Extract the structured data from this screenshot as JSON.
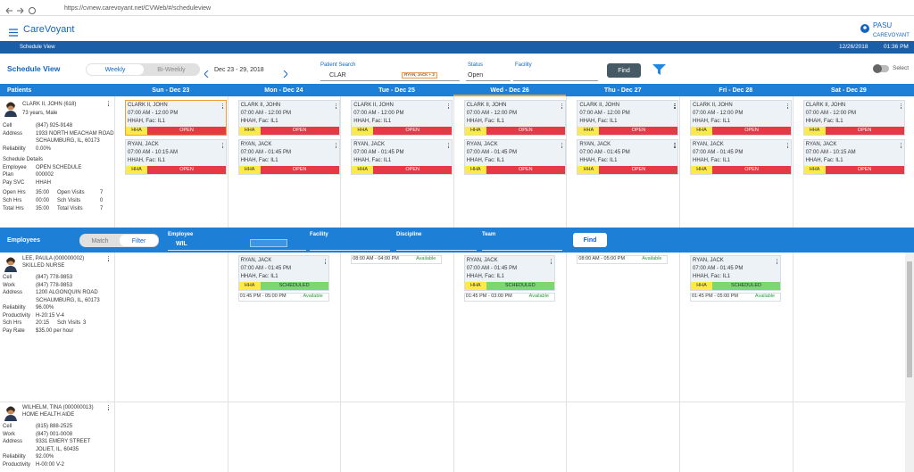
{
  "browser": {
    "url": "https://cvnew.carevoyant.net/CVWeb/#/scheduleview"
  },
  "header": {
    "app_name": "CareVoyant",
    "user": "PASU",
    "org": "CAREVOYANT"
  },
  "nav": {
    "title": "Schedule View",
    "date": "12/26/2018",
    "time": "01:36 PM"
  },
  "toolbar": {
    "title": "Schedule View",
    "views": [
      "Weekly",
      "Bi-Weekly"
    ],
    "range": "Dec 23 - 29, 2018",
    "patient_search": {
      "label": "Patient Search",
      "value": "CLAR",
      "tag": "RYAN, JACK + 2"
    },
    "status": {
      "label": "Status",
      "value": "Open"
    },
    "facility": {
      "label": "Facility"
    },
    "find": "Find",
    "select": "Select"
  },
  "patients": {
    "heading": "Patients",
    "days": [
      "Sun - Dec 23",
      "Mon - Dec 24",
      "Tue - Dec 25",
      "Wed - Dec 26",
      "Thu - Dec 27",
      "Fri - Dec 28",
      "Sat - Dec 29"
    ],
    "patient": {
      "name": "CLARK II, JOHN (618)",
      "info": "73 years, Male",
      "fields": [
        {
          "label": "Cell",
          "value": [
            "(847) 925-9148"
          ]
        },
        {
          "label": "Address",
          "value": [
            "1933 NORTH MEACHAM ROAD",
            "SCHAUMBURG, IL, 60173"
          ]
        },
        {
          "label": "Reliability",
          "value": [
            "0.00%"
          ]
        }
      ],
      "section": "Schedule Details",
      "details": [
        {
          "label": "Employee",
          "value": [
            "OPEN SCHEDULE"
          ]
        },
        {
          "label": "Plan",
          "value": [
            "000002"
          ]
        },
        {
          "label": "Pay SVC",
          "value": [
            "HHAH"
          ]
        }
      ],
      "stats": [
        [
          {
            "label": "Open Hrs",
            "value": "35:00"
          },
          {
            "label": "Open Visits",
            "value": "7"
          }
        ],
        [
          {
            "label": "Sch Hrs",
            "value": "00:00"
          },
          {
            "label": "Sch Visits",
            "value": "0"
          }
        ],
        [
          {
            "label": "Total Hrs",
            "value": "35:00"
          },
          {
            "label": "Total Visits",
            "value": "7"
          }
        ]
      ]
    },
    "schedule": [
      [
        {
          "name": "CLARK II, JOHN",
          "time": "07:00 AM - 12:00 PM",
          "note": "HHAH, Fac: IL1",
          "service": "HHA",
          "status": "OPEN"
        },
        {
          "name": "RYAN, JACK",
          "time": "07:00 AM - 10:15 AM",
          "note": "HHAH, Fac: IL1",
          "service": "HHA",
          "status": "OPEN"
        }
      ],
      [
        {
          "name": "CLARK II, JOHN",
          "time": "07:00 AM - 12:00 PM",
          "note": "HHAH, Fac: IL1",
          "service": "HHA",
          "status": "OPEN"
        },
        {
          "name": "RYAN, JACK",
          "time": "07:00 AM - 01:45 PM",
          "note": "HHAH, Fac: IL1",
          "service": "HHA",
          "status": "OPEN"
        }
      ],
      [
        {
          "name": "CLARK II, JOHN",
          "time": "07:00 AM - 12:00 PM",
          "note": "HHAH, Fac: IL1",
          "service": "HHA",
          "status": "OPEN"
        },
        {
          "name": "RYAN, JACK",
          "time": "07:00 AM - 01:45 PM",
          "note": "HHAH, Fac: IL1",
          "service": "HHA",
          "status": "OPEN"
        }
      ],
      [
        {
          "name": "CLARK II, JOHN",
          "time": "07:00 AM - 12:00 PM",
          "note": "HHAH, Fac: IL1",
          "service": "HHA",
          "status": "OPEN"
        },
        {
          "name": "RYAN, JACK",
          "time": "07:00 AM - 01:45 PM",
          "note": "HHAH, Fac: IL1",
          "service": "HHA",
          "status": "OPEN"
        }
      ],
      [
        {
          "name": "CLARK II, JOHN",
          "time": "07:00 AM - 12:00 PM",
          "note": "HHAH, Fac: IL1",
          "service": "HHA",
          "status": "OPEN"
        },
        {
          "name": "RYAN, JACK",
          "time": "07:00 AM - 01:45 PM",
          "note": "HHAH, Fac: IL1",
          "service": "HHA",
          "status": "OPEN"
        }
      ],
      [
        {
          "name": "CLARK II, JOHN",
          "time": "07:00 AM - 12:00 PM",
          "note": "HHAH, Fac: IL1",
          "service": "HHA",
          "status": "OPEN"
        },
        {
          "name": "RYAN, JACK",
          "time": "07:00 AM - 01:45 PM",
          "note": "HHAH, Fac: IL1",
          "service": "HHA",
          "status": "OPEN"
        }
      ],
      [
        {
          "name": "CLARK II, JOHN",
          "time": "07:00 AM - 12:00 PM",
          "note": "HHAH, Fac: IL1",
          "service": "HHA",
          "status": "OPEN"
        },
        {
          "name": "RYAN, JACK",
          "time": "07:00 AM - 10:15 AM",
          "note": "HHAH, Fac: IL1",
          "service": "HHA",
          "status": "OPEN"
        }
      ]
    ]
  },
  "employees": {
    "heading": "Employees",
    "modes": [
      "Match",
      "Filter"
    ],
    "filters": [
      {
        "label": "Employee",
        "value": "WIL"
      },
      {
        "label": "Facility"
      },
      {
        "label": "Discipline"
      },
      {
        "label": "Team"
      }
    ],
    "find": "Find",
    "rows": [
      {
        "name": "LEE, PAULA (000000002)",
        "role": "SKILLED NURSE",
        "fields": [
          {
            "label": "Cell",
            "value": [
              "(847) 778-9853"
            ]
          },
          {
            "label": "Work",
            "value": [
              "(847) 778-9853"
            ]
          },
          {
            "label": "Address",
            "value": [
              "1200 ALGONQUIN ROAD",
              "SCHAUMBURG, IL, 60173"
            ]
          },
          {
            "label": "Reliability",
            "value": [
              "96.00%"
            ]
          },
          {
            "label": "Productivity",
            "value": [
              "H-20:15 V-4"
            ]
          },
          {
            "label": "Sch Hrs",
            "value": [
              "20:15"
            ],
            "extra": {
              "label": "Sch Visits",
              "value": "3"
            }
          },
          {
            "label": "Pay Rate",
            "value": [
              "$35.00 per hour"
            ]
          }
        ],
        "schedule": [
          [],
          [
            {
              "name": "RYAN, JACK",
              "time": "07:00 AM - 01:45 PM",
              "note": "HHAH, Fac: IL1",
              "service": "HHA",
              "status": "SCHEDULED"
            },
            {
              "time": "01:45 PM - 05:00 PM",
              "status": "Available"
            }
          ],
          [
            {
              "time": "08:00 AM - 04:00 PM",
              "status": "Available"
            }
          ],
          [
            {
              "name": "RYAN, JACK",
              "time": "07:00 AM - 01:45 PM",
              "note": "HHAH, Fac: IL1",
              "service": "HHA",
              "status": "SCHEDULED"
            },
            {
              "time": "01:45 PM - 03:00 PM",
              "status": "Available"
            }
          ],
          [
            {
              "time": "08:00 AM - 05:00 PM",
              "status": "Available"
            }
          ],
          [
            {
              "name": "RYAN, JACK",
              "time": "07:00 AM - 01:45 PM",
              "note": "HHAH, Fac: IL1",
              "service": "HHA",
              "status": "SCHEDULED"
            },
            {
              "time": "01:45 PM - 05:00 PM",
              "status": "Available"
            }
          ],
          []
        ]
      },
      {
        "name": "WILHELM, TINA (000000013)",
        "role": "HOME HEALTH AIDE",
        "fields": [
          {
            "label": "Cell",
            "value": [
              "(815) 888-2525"
            ]
          },
          {
            "label": "Work",
            "value": [
              "(847) 001-0008"
            ]
          },
          {
            "label": "Address",
            "value": [
              "9331 EMERY STREET",
              "JOLIET, IL, 60435"
            ]
          },
          {
            "label": "Reliability",
            "value": [
              "92.00%"
            ]
          },
          {
            "label": "Productivity",
            "value": [
              "H-00:00 V-2"
            ]
          }
        ],
        "schedule": [
          [],
          [],
          [],
          [],
          [],
          [],
          []
        ]
      }
    ]
  }
}
